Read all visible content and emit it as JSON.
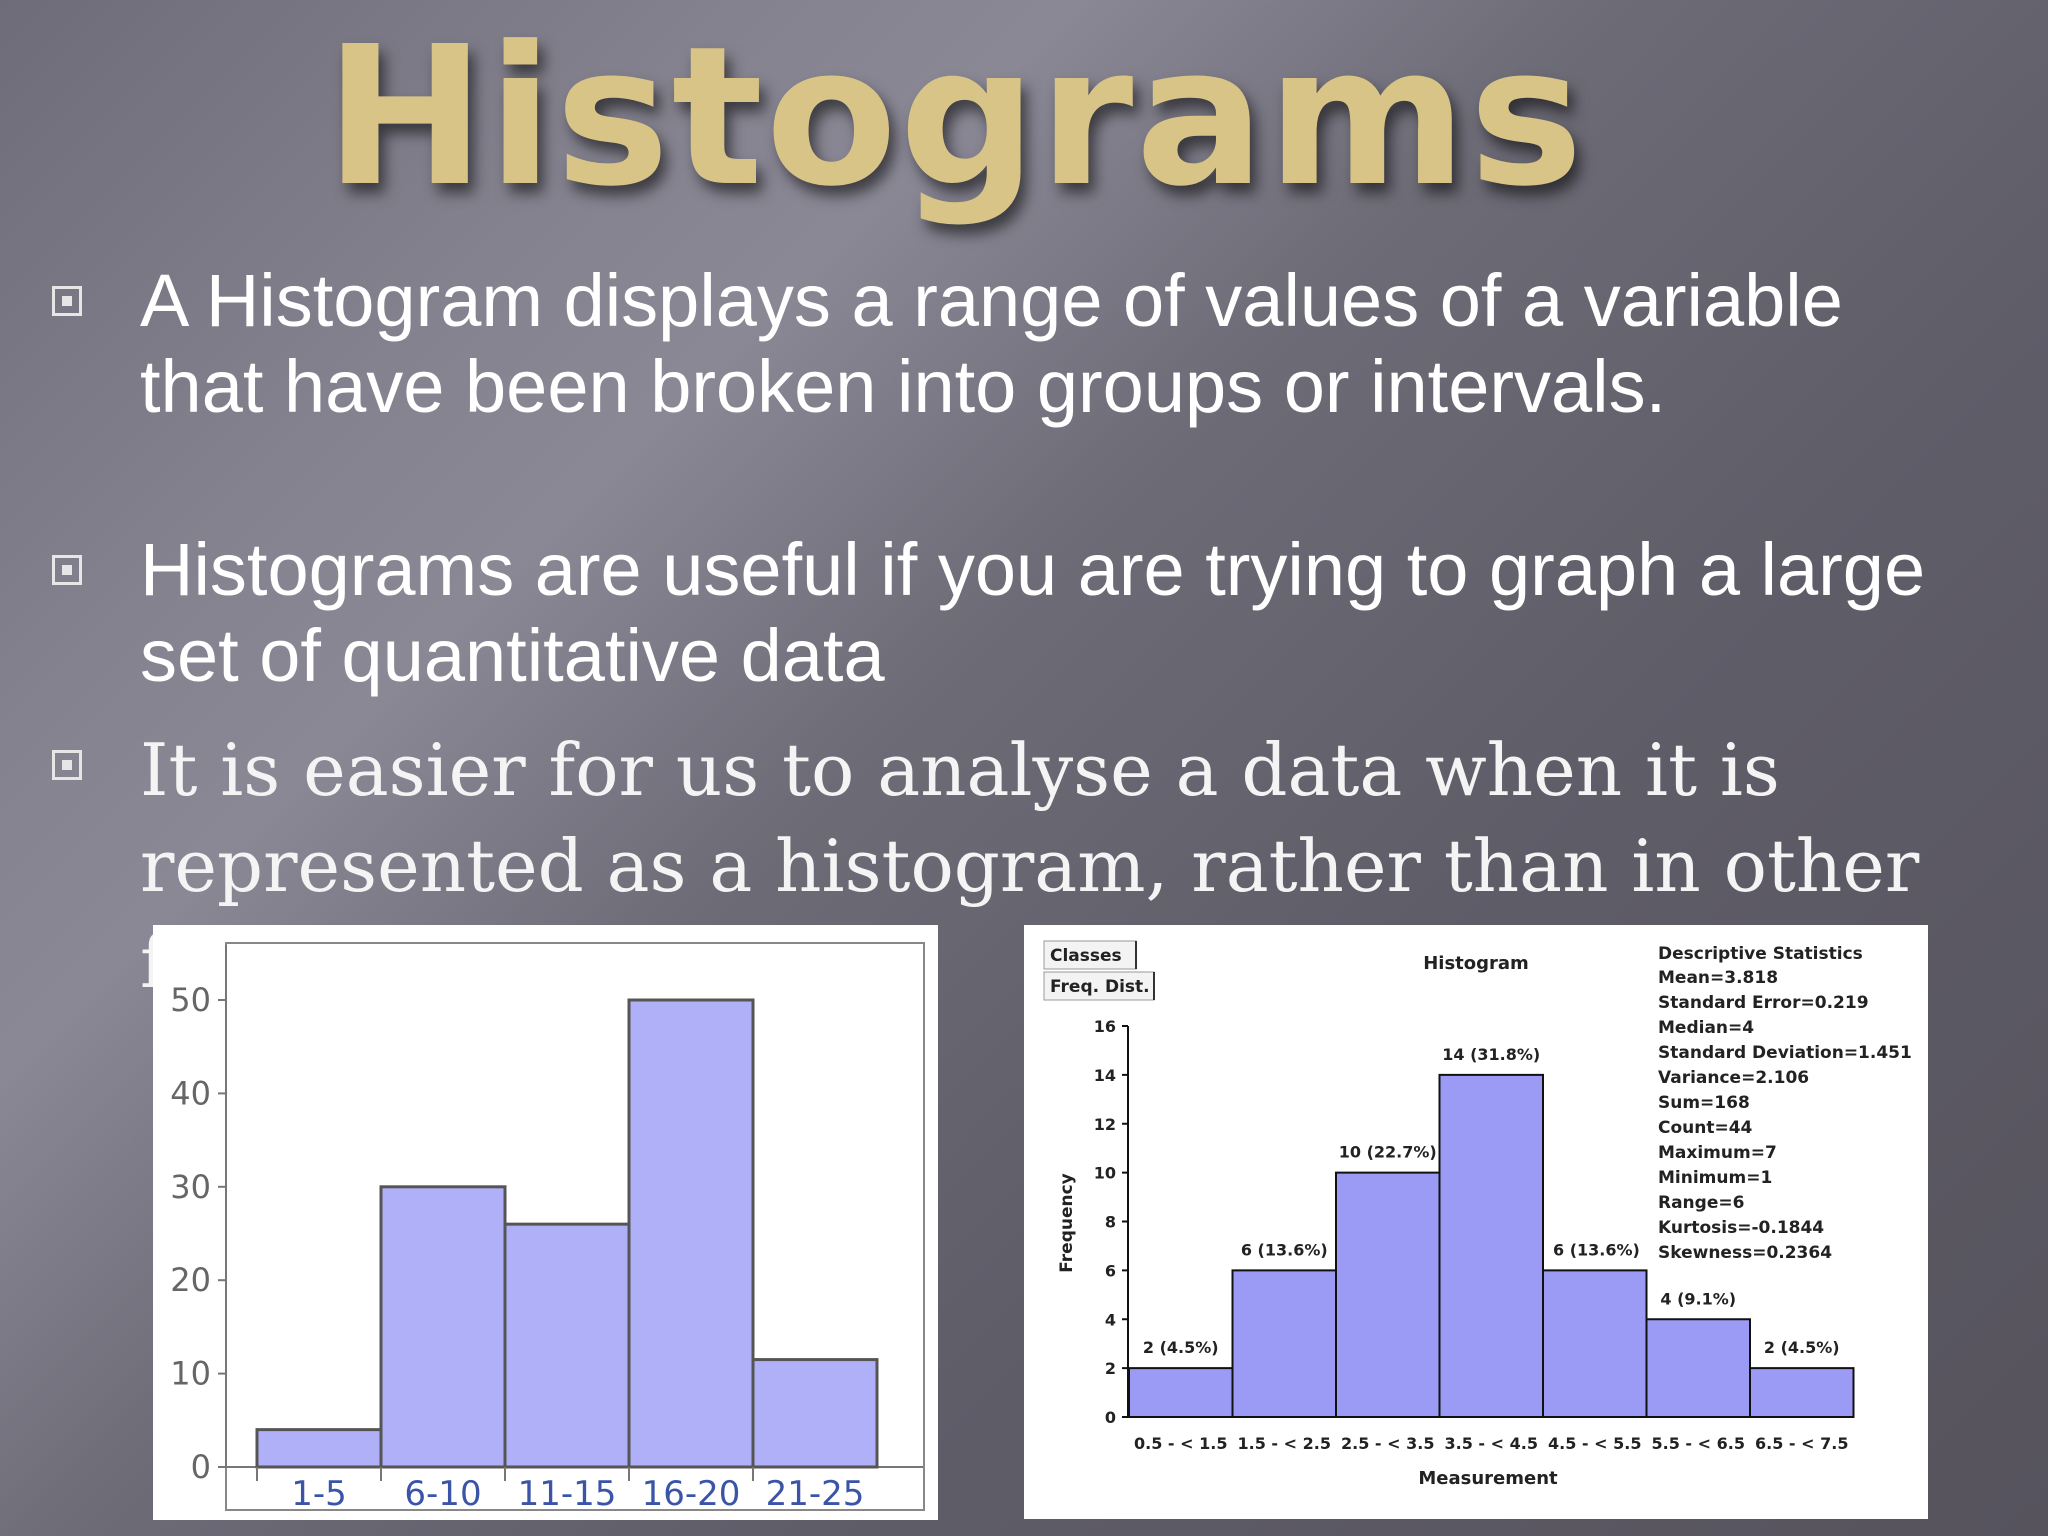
{
  "slide": {
    "title": "Histograms",
    "bullets": [
      "A Histogram displays a range of values of a variable that have been broken into groups or intervals.",
      "Histograms are useful if you are trying to graph a large set of quantitative data",
      "It is easier for us to analyse a data when it is represented as a histogram, rather than in other f"
    ]
  },
  "chart_data": [
    {
      "type": "bar",
      "categories": [
        "1-5",
        "6-10",
        "11-15",
        "16-20",
        "21-25"
      ],
      "values": [
        4,
        30,
        26,
        50,
        11.5
      ],
      "ylim": [
        0,
        55
      ],
      "yticks": [
        "0",
        "10",
        "20",
        "30",
        "40",
        "50"
      ],
      "grid": false,
      "bar_color": "#b0b0f8"
    },
    {
      "type": "bar",
      "title": "Histogram",
      "xlabel": "Measurement",
      "ylabel": "Frequency",
      "categories": [
        "0.5 - < 1.5",
        "1.5 - < 2.5",
        "2.5 - < 3.5",
        "3.5 - < 4.5",
        "4.5 - < 5.5",
        "5.5 - < 6.5",
        "6.5 - < 7.5"
      ],
      "values": [
        2,
        6,
        10,
        14,
        6,
        4,
        2
      ],
      "data_labels": [
        "2 (4.5%)",
        "6 (13.6%)",
        "10 (22.7%)",
        "14 (31.8%)",
        "6 (13.6%)",
        "4 (9.1%)",
        "2 (4.5%)"
      ],
      "ylim": [
        0,
        16
      ],
      "yticks": [
        "0",
        "2",
        "4",
        "6",
        "8",
        "10",
        "12",
        "14",
        "16"
      ],
      "grid": false,
      "bar_color": "#9b9bf5",
      "buttons": [
        "Classes",
        "Freq. Dist."
      ],
      "stats_title": "Descriptive Statistics",
      "stats": [
        "Mean=3.818",
        "Standard Error=0.219",
        "Median=4",
        "Standard Deviation=1.451",
        "Variance=2.106",
        "Sum=168",
        "Count=44",
        "Maximum=7",
        "Minimum=1",
        "Range=6",
        "Kurtosis=-0.1844",
        "Skewness=0.2364"
      ]
    }
  ]
}
